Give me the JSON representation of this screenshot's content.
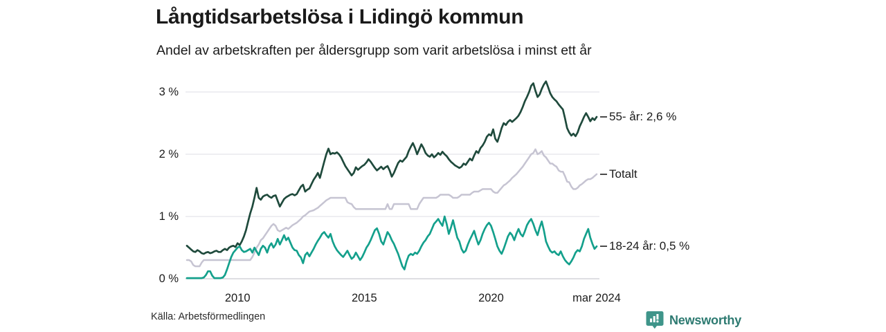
{
  "title": "Långtidsarbetslösa i Lidingö kommun",
  "subtitle": "Andel av arbetskraften per åldersgrupp som varit arbetslösa i minst ett år",
  "source": "Källa: Arbetsförmedlingen",
  "branding": {
    "name": "Newsworthy",
    "icon": "bar-chart-pin-icon",
    "icon_color": "#3f958a",
    "text_color": "#2d7a71"
  },
  "colors": {
    "background": "#ffffff",
    "grid": "#e4e4ea",
    "zero_line": "#c9c9d0",
    "text": "#1a1a1a",
    "connector_dash": "#4a4a4a"
  },
  "chart_data": {
    "type": "line",
    "title": "Långtidsarbetslösa i Lidingö kommun",
    "subtitle": "Andel av arbetskraften per åldersgrupp som varit arbetslösa i minst ett år",
    "unit": "%",
    "grid": "horizontal",
    "legend_position": "right-of-line-end",
    "x_axis": {
      "start": "2008-01",
      "end": "2024-03",
      "tick_months": [
        24,
        84,
        144,
        194
      ],
      "tick_labels": [
        "2010",
        "2015",
        "2020",
        "mar 2024"
      ]
    },
    "y_axis": {
      "tick_values": [
        0,
        1,
        2,
        3
      ],
      "tick_labels": [
        "0 %",
        "1 %",
        "2 %",
        "3 %"
      ],
      "range": [
        0,
        3.25
      ]
    },
    "series": [
      {
        "name": "55- år",
        "label": "55- år: 2,6 %",
        "last_value_text": "2,6 %",
        "color": "#1f4a3c",
        "stroke_width": 2.7,
        "values": [
          0.53,
          0.5,
          0.47,
          0.44,
          0.43,
          0.46,
          0.44,
          0.41,
          0.4,
          0.42,
          0.43,
          0.41,
          0.42,
          0.44,
          0.45,
          0.43,
          0.43,
          0.46,
          0.48,
          0.46,
          0.5,
          0.52,
          0.53,
          0.51,
          0.57,
          0.54,
          0.6,
          0.68,
          0.78,
          0.92,
          1.05,
          1.16,
          1.3,
          1.46,
          1.3,
          1.27,
          1.32,
          1.34,
          1.35,
          1.32,
          1.3,
          1.33,
          1.34,
          1.25,
          1.16,
          1.22,
          1.28,
          1.31,
          1.33,
          1.35,
          1.36,
          1.34,
          1.36,
          1.42,
          1.48,
          1.51,
          1.4,
          1.43,
          1.45,
          1.52,
          1.59,
          1.64,
          1.7,
          1.62,
          1.75,
          1.88,
          2.0,
          2.09,
          2.0,
          2.02,
          2.01,
          2.03,
          2.0,
          1.95,
          1.88,
          1.81,
          1.76,
          1.71,
          1.66,
          1.7,
          1.79,
          1.75,
          1.78,
          1.81,
          1.83,
          1.87,
          1.92,
          1.88,
          1.83,
          1.78,
          1.74,
          1.77,
          1.8,
          1.76,
          1.79,
          1.81,
          1.74,
          1.64,
          1.7,
          1.78,
          1.86,
          1.9,
          1.88,
          1.92,
          1.96,
          2.05,
          2.12,
          2.18,
          2.1,
          2.0,
          2.08,
          2.16,
          2.1,
          2.02,
          1.98,
          1.96,
          2.0,
          1.95,
          1.98,
          2.02,
          1.99,
          2.04,
          2.0,
          1.97,
          1.92,
          1.88,
          1.85,
          1.82,
          1.8,
          1.78,
          1.8,
          1.85,
          1.83,
          1.88,
          1.93,
          1.9,
          1.98,
          2.05,
          2.02,
          2.1,
          2.14,
          2.2,
          2.28,
          2.32,
          2.3,
          2.4,
          2.25,
          2.2,
          2.3,
          2.42,
          2.5,
          2.47,
          2.52,
          2.55,
          2.52,
          2.55,
          2.58,
          2.62,
          2.68,
          2.76,
          2.85,
          2.92,
          3.0,
          3.1,
          3.14,
          3.02,
          2.92,
          2.96,
          3.05,
          3.12,
          3.17,
          3.08,
          2.98,
          2.92,
          2.88,
          2.85,
          2.8,
          2.76,
          2.72,
          2.58,
          2.42,
          2.35,
          2.3,
          2.33,
          2.29,
          2.35,
          2.45,
          2.52,
          2.6,
          2.66,
          2.6,
          2.53,
          2.58,
          2.55,
          2.6
        ]
      },
      {
        "name": "Totalt",
        "label": "Totalt",
        "last_value_text": "",
        "color": "#c6c4d2",
        "stroke_width": 2.5,
        "values": [
          0.3,
          0.3,
          0.28,
          0.22,
          0.2,
          0.2,
          0.2,
          0.26,
          0.3,
          0.3,
          0.3,
          0.3,
          0.3,
          0.3,
          0.3,
          0.3,
          0.3,
          0.3,
          0.3,
          0.3,
          0.3,
          0.3,
          0.3,
          0.3,
          0.3,
          0.3,
          0.3,
          0.3,
          0.3,
          0.3,
          0.3,
          0.35,
          0.42,
          0.5,
          0.55,
          0.62,
          0.65,
          0.7,
          0.75,
          0.8,
          0.85,
          0.88,
          0.85,
          0.78,
          0.76,
          0.78,
          0.8,
          0.82,
          0.8,
          0.83,
          0.86,
          0.88,
          0.9,
          0.93,
          0.96,
          1.0,
          1.02,
          1.05,
          1.08,
          1.09,
          1.1,
          1.12,
          1.14,
          1.17,
          1.2,
          1.23,
          1.26,
          1.28,
          1.3,
          1.3,
          1.3,
          1.3,
          1.3,
          1.3,
          1.3,
          1.3,
          1.23,
          1.21,
          1.2,
          1.15,
          1.12,
          1.12,
          1.12,
          1.12,
          1.12,
          1.12,
          1.12,
          1.12,
          1.12,
          1.12,
          1.12,
          1.12,
          1.12,
          1.12,
          1.12,
          1.2,
          1.12,
          1.12,
          1.2,
          1.2,
          1.2,
          1.2,
          1.2,
          1.2,
          1.2,
          1.2,
          1.12,
          1.12,
          1.12,
          1.12,
          1.2,
          1.25,
          1.3,
          1.3,
          1.3,
          1.3,
          1.3,
          1.3,
          1.3,
          1.32,
          1.35,
          1.35,
          1.35,
          1.35,
          1.35,
          1.33,
          1.3,
          1.3,
          1.3,
          1.32,
          1.35,
          1.35,
          1.35,
          1.35,
          1.35,
          1.38,
          1.4,
          1.4,
          1.4,
          1.42,
          1.44,
          1.44,
          1.44,
          1.44,
          1.44,
          1.4,
          1.38,
          1.38,
          1.42,
          1.46,
          1.5,
          1.52,
          1.55,
          1.58,
          1.62,
          1.65,
          1.68,
          1.72,
          1.76,
          1.8,
          1.85,
          1.9,
          1.95,
          2.0,
          2.02,
          2.08,
          2.0,
          2.02,
          2.05,
          1.98,
          1.95,
          1.9,
          1.85,
          1.85,
          1.82,
          1.8,
          1.74,
          1.72,
          1.72,
          1.65,
          1.56,
          1.55,
          1.48,
          1.44,
          1.44,
          1.46,
          1.5,
          1.52,
          1.55,
          1.58,
          1.6,
          1.6,
          1.62,
          1.65,
          1.68
        ]
      },
      {
        "name": "18-24 år",
        "label": "18-24 år: 0,5 %",
        "last_value_text": "0,5 %",
        "color": "#14a08c",
        "stroke_width": 2.7,
        "values": [
          0.01,
          0.01,
          0.01,
          0.01,
          0.01,
          0.01,
          0.01,
          0.01,
          0.02,
          0.06,
          0.12,
          0.12,
          0.05,
          0.01,
          0.01,
          0.01,
          0.01,
          0.02,
          0.06,
          0.15,
          0.25,
          0.35,
          0.42,
          0.46,
          0.5,
          0.52,
          0.46,
          0.43,
          0.44,
          0.46,
          0.48,
          0.42,
          0.5,
          0.44,
          0.38,
          0.48,
          0.53,
          0.5,
          0.42,
          0.52,
          0.57,
          0.5,
          0.55,
          0.64,
          0.55,
          0.62,
          0.7,
          0.62,
          0.66,
          0.58,
          0.5,
          0.46,
          0.45,
          0.38,
          0.34,
          0.25,
          0.38,
          0.42,
          0.36,
          0.42,
          0.48,
          0.55,
          0.61,
          0.66,
          0.72,
          0.75,
          0.7,
          0.66,
          0.72,
          0.6,
          0.52,
          0.46,
          0.42,
          0.38,
          0.35,
          0.4,
          0.45,
          0.38,
          0.32,
          0.35,
          0.42,
          0.36,
          0.3,
          0.35,
          0.42,
          0.5,
          0.55,
          0.62,
          0.7,
          0.78,
          0.81,
          0.72,
          0.6,
          0.55,
          0.65,
          0.75,
          0.7,
          0.62,
          0.56,
          0.48,
          0.4,
          0.3,
          0.2,
          0.15,
          0.28,
          0.37,
          0.4,
          0.38,
          0.42,
          0.4,
          0.45,
          0.52,
          0.58,
          0.62,
          0.68,
          0.72,
          0.8,
          0.88,
          0.92,
          0.96,
          0.9,
          0.85,
          1.0,
          0.88,
          0.72,
          0.82,
          0.94,
          0.8,
          0.66,
          0.6,
          0.48,
          0.42,
          0.45,
          0.55,
          0.63,
          0.7,
          0.77,
          0.65,
          0.55,
          0.62,
          0.72,
          0.8,
          0.86,
          0.9,
          0.85,
          0.75,
          0.64,
          0.52,
          0.45,
          0.4,
          0.48,
          0.58,
          0.68,
          0.74,
          0.7,
          0.62,
          0.72,
          0.8,
          0.72,
          0.68,
          0.76,
          0.86,
          0.92,
          0.96,
          0.88,
          0.78,
          0.7,
          0.82,
          0.92,
          0.78,
          0.6,
          0.52,
          0.45,
          0.42,
          0.44,
          0.4,
          0.38,
          0.44,
          0.36,
          0.3,
          0.26,
          0.23,
          0.28,
          0.34,
          0.42,
          0.46,
          0.44,
          0.52,
          0.64,
          0.72,
          0.8,
          0.66,
          0.56,
          0.48,
          0.52
        ]
      }
    ]
  }
}
